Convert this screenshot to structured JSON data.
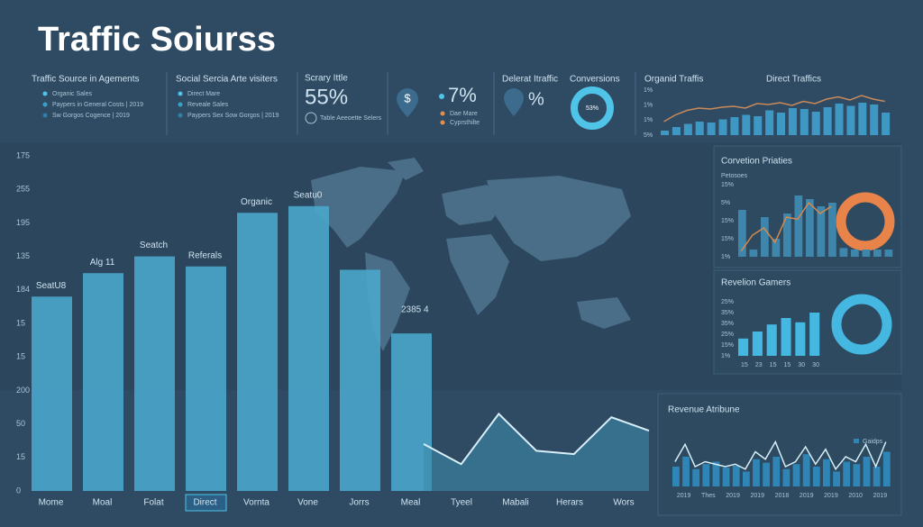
{
  "header": {
    "title": "Traffic Soiurss"
  },
  "kpi_sources": {
    "title": "Traffic Source in Agements",
    "items": [
      {
        "label": "Organic Sales",
        "color": "#4fc3e8"
      },
      {
        "label": "Paypers in General Costs | 2019",
        "color": "#3aa0c8"
      },
      {
        "label": "Sw Gorgos Cogence | 2019",
        "color": "#2d7fa8"
      }
    ]
  },
  "kpi_social": {
    "title": "Social Sercia Arte visiters",
    "items": [
      {
        "label": "Direct Mare",
        "color": "#4fc3e8"
      },
      {
        "label": "Reveale Sales",
        "color": "#3aa0c8"
      },
      {
        "label": "Paypers Sex Sow Gorgos | 2019",
        "color": "#2d7fa8"
      }
    ]
  },
  "kpi_summary": {
    "title": "Scrary Ittle",
    "value": "55%",
    "note": "Table Aeeoette Selers"
  },
  "kpi_dollar": {
    "value": "7%",
    "items": [
      {
        "label": "Dae Mare",
        "color": "#e0904a"
      },
      {
        "label": "Cyprsthilte",
        "color": "#e0904a"
      }
    ]
  },
  "kpi_direct": {
    "title": "Delerat Itraffic",
    "value": "%"
  },
  "kpi_conversions": {
    "title": "Conversions",
    "value": "53%"
  },
  "traffic_panel": {
    "titles": [
      "Organid Traffis",
      "Direct Traffics"
    ],
    "y_labels": [
      "1%",
      "1%",
      "1%",
      "5%"
    ],
    "ylim": [
      0,
      100
    ],
    "bar_color": "#3f97c4",
    "line_color": "#c98a5a",
    "bars": [
      10,
      18,
      25,
      30,
      28,
      35,
      40,
      45,
      42,
      55,
      50,
      60,
      58,
      52,
      62,
      70,
      65,
      72,
      68,
      50
    ],
    "line": [
      30,
      45,
      55,
      60,
      58,
      62,
      64,
      60,
      70,
      68,
      72,
      66,
      75,
      70,
      80,
      85,
      78,
      88,
      80,
      75
    ]
  },
  "main_chart": {
    "type": "bar",
    "categories": [
      "Mome",
      "Moal",
      "Folat",
      "Direct",
      "Vornta",
      "Vone",
      "Jorrs",
      "Meal"
    ],
    "values": [
      58,
      65,
      70,
      67,
      83,
      85,
      66,
      47
    ],
    "bar_labels": [
      "SeatU8",
      "Alg 11",
      "Seatch",
      "Referals",
      "Organic",
      "Seatu0",
      null,
      "2385 4"
    ],
    "y_axis_labels": [
      "175",
      "255",
      "195",
      "135",
      "184",
      "15",
      "15",
      "200",
      "50",
      "15",
      "0"
    ],
    "ylim": [
      0,
      100
    ],
    "color": "#4aa6cb",
    "selected_category": "Direct"
  },
  "trend_chart": {
    "type": "area",
    "x_labels": [
      "Tyeel",
      "Mabali",
      "Herars",
      "Wors"
    ],
    "values": [
      14,
      8,
      23,
      12,
      11,
      22,
      18
    ],
    "ylim": [
      0,
      100
    ],
    "color": "#3d88aa"
  },
  "conversion_panel": {
    "title": "Corvetion Priaties",
    "subtitle": "Petosoes",
    "y_labels": [
      "15%",
      "5%",
      "15%",
      "15%",
      "1%"
    ],
    "ylim": [
      0,
      100
    ],
    "bar_color": "#3f86ad",
    "line_color": "#d5894d",
    "bars": [
      65,
      10,
      55,
      25,
      60,
      85,
      80,
      70,
      75,
      12,
      10,
      10,
      10,
      10
    ],
    "line": [
      8,
      30,
      40,
      20,
      55,
      52,
      75,
      60,
      70,
      null,
      null,
      null,
      null,
      null
    ]
  },
  "revenue_panel": {
    "title": "Revelion Gamers",
    "y_labels": [
      "25%",
      "35%",
      "35%",
      "25%",
      "15%",
      "1%"
    ],
    "x_labels": [
      "15",
      "23",
      "15",
      "15",
      "30",
      "30"
    ],
    "ylim": [
      0,
      100
    ],
    "bar_color": "#45b8e2",
    "bars": [
      32,
      45,
      58,
      70,
      62,
      80
    ]
  },
  "attribution_panel": {
    "title": "Revenue Atribune",
    "legend": "Gaidps",
    "x_labels": [
      "2019",
      "Thes",
      "2019",
      "2019",
      "2018",
      "2019",
      "2019",
      "2010",
      "2019"
    ],
    "ylim": [
      0,
      100
    ],
    "bar_color": "#2f86b6",
    "line_color": "#d8eef8",
    "bars": [
      40,
      60,
      35,
      45,
      50,
      38,
      42,
      30,
      55,
      48,
      60,
      35,
      45,
      65,
      40,
      55,
      30,
      50,
      45,
      60,
      40,
      70
    ],
    "line": [
      50,
      85,
      40,
      50,
      45,
      40,
      45,
      35,
      70,
      55,
      90,
      40,
      50,
      80,
      45,
      75,
      35,
      60,
      50,
      85,
      40,
      90
    ]
  }
}
